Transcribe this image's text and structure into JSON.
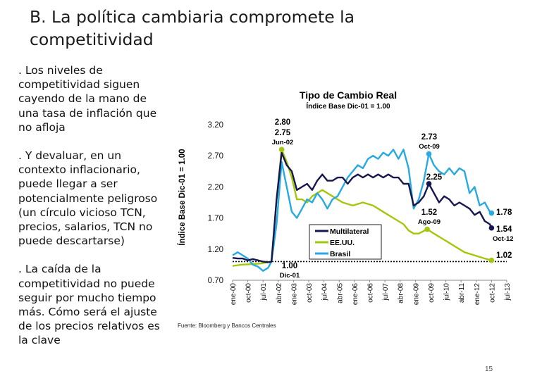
{
  "slide": {
    "title_line1": "B. La política cambiaria compromete la",
    "title_line2": "competitividad",
    "bullets": [
      ". Los niveles de competitividad siguen cayendo de la mano de una tasa de inflación que no afloja",
      ". Y devaluar, en un contexto inflacionario, puede llegar a ser potencialmente peligroso (un círculo vicioso TCN, precios, salarios, TCN no puede descartarse)",
      ". La caída de la competitividad no puede seguir por mucho tiempo más. Cómo será el ajuste de los precios relativos es la clave"
    ],
    "page_number": "15"
  },
  "chart_data": {
    "type": "line",
    "title": "Tipo de Cambio Real",
    "subtitle": "Índice Base Dic-01 = 1.00",
    "ylabel": "Índice Base Dic-01 = 1.00",
    "xlabel": "",
    "ylim": [
      0.7,
      3.2
    ],
    "yticks": [
      "3.20",
      "2.70",
      "2.20",
      "1.70",
      "1.20",
      "0.70"
    ],
    "xlim": [
      "2000-01",
      "2013-07"
    ],
    "xticks": [
      "ene-00",
      "oct-00",
      "jul-01",
      "abr-02",
      "ene-03",
      "oct-03",
      "jul-04",
      "abr-05",
      "ene-06",
      "oct-06",
      "jul-07",
      "abr-08",
      "ene-09",
      "oct-09",
      "jul-10",
      "abr-11",
      "ene-12",
      "oct-12",
      "jul-13"
    ],
    "source": "Fuente: Bloomberg y Bancos Centrales",
    "legend_position": "bottom-left",
    "colors": {
      "Multilateral": "#17174f",
      "EE.UU.": "#a3c70d",
      "Brasil": "#27a9e1",
      "baseline": "#000000"
    },
    "series": [
      {
        "name": "Multilateral",
        "x": [
          "2000-01",
          "2000-04",
          "2000-07",
          "2000-10",
          "2001-01",
          "2001-04",
          "2001-07",
          "2001-10",
          "2001-12",
          "2002-03",
          "2002-06",
          "2002-09",
          "2002-12",
          "2003-03",
          "2003-06",
          "2003-09",
          "2003-12",
          "2004-03",
          "2004-06",
          "2004-09",
          "2004-12",
          "2005-03",
          "2005-06",
          "2005-09",
          "2005-12",
          "2006-03",
          "2006-06",
          "2006-09",
          "2006-12",
          "2007-03",
          "2007-06",
          "2007-09",
          "2007-12",
          "2008-03",
          "2008-06",
          "2008-09",
          "2008-12",
          "2009-03",
          "2009-06",
          "2009-09",
          "2009-12",
          "2010-03",
          "2010-06",
          "2010-09",
          "2010-12",
          "2011-03",
          "2011-06",
          "2011-09",
          "2011-12",
          "2012-03",
          "2012-06",
          "2012-09",
          "2012-10"
        ],
        "values": [
          1.06,
          1.05,
          1.05,
          1.02,
          1.04,
          1.02,
          1.0,
          0.99,
          1.0,
          2.0,
          2.75,
          2.55,
          2.45,
          2.15,
          2.2,
          2.25,
          2.15,
          2.3,
          2.4,
          2.3,
          2.3,
          2.35,
          2.35,
          2.25,
          2.35,
          2.4,
          2.35,
          2.4,
          2.35,
          2.4,
          2.35,
          2.4,
          2.35,
          2.35,
          2.25,
          2.25,
          1.9,
          1.95,
          2.05,
          2.25,
          2.1,
          1.95,
          2.05,
          2.0,
          1.9,
          1.95,
          1.9,
          1.85,
          1.75,
          1.8,
          1.65,
          1.6,
          1.54
        ]
      },
      {
        "name": "EE.UU.",
        "x": [
          "2000-01",
          "2000-06",
          "2001-01",
          "2001-06",
          "2001-12",
          "2002-03",
          "2002-06",
          "2002-09",
          "2002-12",
          "2003-03",
          "2003-06",
          "2003-09",
          "2003-12",
          "2004-06",
          "2004-12",
          "2005-06",
          "2005-12",
          "2006-06",
          "2006-12",
          "2007-06",
          "2007-12",
          "2008-06",
          "2008-09",
          "2008-12",
          "2009-03",
          "2009-08",
          "2009-12",
          "2010-06",
          "2010-12",
          "2011-06",
          "2011-12",
          "2012-06",
          "2012-10"
        ],
        "values": [
          0.93,
          0.95,
          0.96,
          0.97,
          1.0,
          2.0,
          2.8,
          2.6,
          2.35,
          2.0,
          2.0,
          1.95,
          2.05,
          2.15,
          2.05,
          1.95,
          1.9,
          1.95,
          1.9,
          1.8,
          1.7,
          1.6,
          1.5,
          1.45,
          1.45,
          1.52,
          1.45,
          1.35,
          1.25,
          1.15,
          1.1,
          1.05,
          1.02
        ]
      },
      {
        "name": "Brasil",
        "x": [
          "2000-01",
          "2000-04",
          "2000-07",
          "2000-10",
          "2001-01",
          "2001-04",
          "2001-07",
          "2001-10",
          "2001-12",
          "2002-03",
          "2002-06",
          "2002-09",
          "2002-12",
          "2003-03",
          "2003-06",
          "2003-09",
          "2003-12",
          "2004-03",
          "2004-06",
          "2004-09",
          "2004-12",
          "2005-03",
          "2005-06",
          "2005-09",
          "2005-12",
          "2006-03",
          "2006-06",
          "2006-09",
          "2006-12",
          "2007-03",
          "2007-06",
          "2007-09",
          "2007-12",
          "2008-03",
          "2008-06",
          "2008-09",
          "2008-12",
          "2009-03",
          "2009-06",
          "2009-09",
          "2009-12",
          "2010-03",
          "2010-06",
          "2010-09",
          "2010-12",
          "2011-03",
          "2011-06",
          "2011-09",
          "2011-12",
          "2012-03",
          "2012-06",
          "2012-09",
          "2012-10"
        ],
        "values": [
          1.1,
          1.15,
          1.1,
          1.05,
          0.95,
          0.92,
          0.85,
          0.9,
          1.0,
          1.6,
          2.6,
          2.2,
          1.8,
          1.7,
          1.85,
          2.0,
          1.95,
          2.1,
          2.0,
          1.85,
          2.0,
          2.05,
          2.2,
          2.35,
          2.45,
          2.55,
          2.5,
          2.65,
          2.7,
          2.65,
          2.75,
          2.7,
          2.8,
          2.65,
          2.8,
          2.5,
          1.85,
          2.0,
          2.3,
          2.73,
          2.55,
          2.45,
          2.4,
          2.5,
          2.4,
          2.5,
          2.45,
          2.1,
          2.2,
          1.9,
          1.95,
          1.8,
          1.78
        ]
      }
    ],
    "baseline_value": 1.0,
    "legend": [
      "Multilateral",
      "EE.UU.",
      "Brasil"
    ],
    "annotations": [
      {
        "text": "2.80",
        "x": "2002-06",
        "y": 2.8
      },
      {
        "text": "2.75",
        "x": "2002-06",
        "y": 2.75
      },
      {
        "text": "Jun-02",
        "x": "2002-06",
        "y": 2.75
      },
      {
        "text": "1.00",
        "x": "2001-12",
        "y": 1.0
      },
      {
        "text": "Dic-01",
        "x": "2001-12",
        "y": 1.0
      },
      {
        "text": "2.73",
        "x": "2009-09",
        "y": 2.73
      },
      {
        "text": "Oct-09",
        "x": "2009-10",
        "y": 2.73
      },
      {
        "text": "2.25",
        "x": "2009-09",
        "y": 2.25
      },
      {
        "text": "1.52",
        "x": "2009-08",
        "y": 1.52
      },
      {
        "text": "Ago-09",
        "x": "2009-08",
        "y": 1.52
      },
      {
        "text": "1.78",
        "x": "2012-10",
        "y": 1.78
      },
      {
        "text": "1.54",
        "x": "2012-10",
        "y": 1.54
      },
      {
        "text": "Oct-12",
        "x": "2012-10",
        "y": 1.54
      },
      {
        "text": "1.02",
        "x": "2012-10",
        "y": 1.02
      }
    ]
  }
}
